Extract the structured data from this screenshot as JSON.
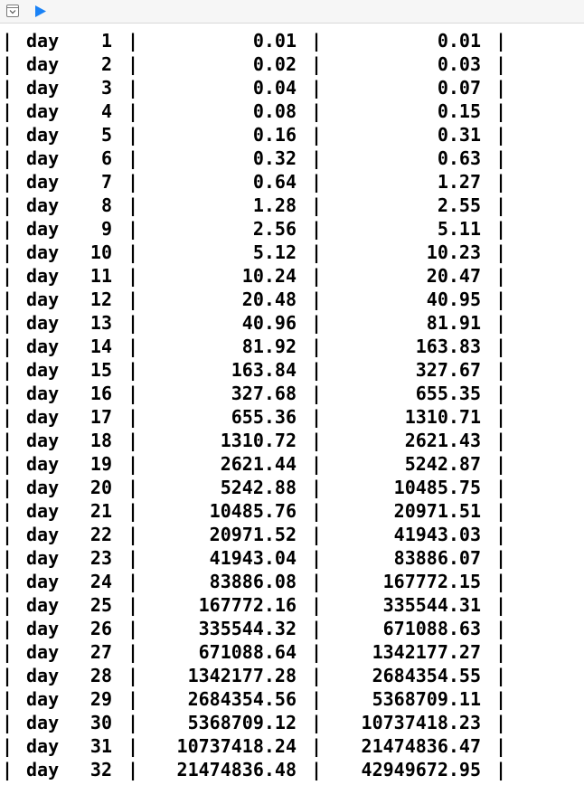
{
  "toolbar": {
    "toggle_icon": "console-toggle-icon",
    "run_icon": "run-play-icon",
    "run_color": "#1a82f6"
  },
  "console": {
    "separator": "|",
    "rows": [
      {
        "label": "day",
        "day": "1",
        "daily": "0.01",
        "total": "0.01"
      },
      {
        "label": "day",
        "day": "2",
        "daily": "0.02",
        "total": "0.03"
      },
      {
        "label": "day",
        "day": "3",
        "daily": "0.04",
        "total": "0.07"
      },
      {
        "label": "day",
        "day": "4",
        "daily": "0.08",
        "total": "0.15"
      },
      {
        "label": "day",
        "day": "5",
        "daily": "0.16",
        "total": "0.31"
      },
      {
        "label": "day",
        "day": "6",
        "daily": "0.32",
        "total": "0.63"
      },
      {
        "label": "day",
        "day": "7",
        "daily": "0.64",
        "total": "1.27"
      },
      {
        "label": "day",
        "day": "8",
        "daily": "1.28",
        "total": "2.55"
      },
      {
        "label": "day",
        "day": "9",
        "daily": "2.56",
        "total": "5.11"
      },
      {
        "label": "day",
        "day": "10",
        "daily": "5.12",
        "total": "10.23"
      },
      {
        "label": "day",
        "day": "11",
        "daily": "10.24",
        "total": "20.47"
      },
      {
        "label": "day",
        "day": "12",
        "daily": "20.48",
        "total": "40.95"
      },
      {
        "label": "day",
        "day": "13",
        "daily": "40.96",
        "total": "81.91"
      },
      {
        "label": "day",
        "day": "14",
        "daily": "81.92",
        "total": "163.83"
      },
      {
        "label": "day",
        "day": "15",
        "daily": "163.84",
        "total": "327.67"
      },
      {
        "label": "day",
        "day": "16",
        "daily": "327.68",
        "total": "655.35"
      },
      {
        "label": "day",
        "day": "17",
        "daily": "655.36",
        "total": "1310.71"
      },
      {
        "label": "day",
        "day": "18",
        "daily": "1310.72",
        "total": "2621.43"
      },
      {
        "label": "day",
        "day": "19",
        "daily": "2621.44",
        "total": "5242.87"
      },
      {
        "label": "day",
        "day": "20",
        "daily": "5242.88",
        "total": "10485.75"
      },
      {
        "label": "day",
        "day": "21",
        "daily": "10485.76",
        "total": "20971.51"
      },
      {
        "label": "day",
        "day": "22",
        "daily": "20971.52",
        "total": "41943.03"
      },
      {
        "label": "day",
        "day": "23",
        "daily": "41943.04",
        "total": "83886.07"
      },
      {
        "label": "day",
        "day": "24",
        "daily": "83886.08",
        "total": "167772.15"
      },
      {
        "label": "day",
        "day": "25",
        "daily": "167772.16",
        "total": "335544.31"
      },
      {
        "label": "day",
        "day": "26",
        "daily": "335544.32",
        "total": "671088.63"
      },
      {
        "label": "day",
        "day": "27",
        "daily": "671088.64",
        "total": "1342177.27"
      },
      {
        "label": "day",
        "day": "28",
        "daily": "1342177.28",
        "total": "2684354.55"
      },
      {
        "label": "day",
        "day": "29",
        "daily": "2684354.56",
        "total": "5368709.11"
      },
      {
        "label": "day",
        "day": "30",
        "daily": "5368709.12",
        "total": "10737418.23"
      },
      {
        "label": "day",
        "day": "31",
        "daily": "10737418.24",
        "total": "21474836.47"
      },
      {
        "label": "day",
        "day": "32",
        "daily": "21474836.48",
        "total": "42949672.95"
      }
    ]
  }
}
